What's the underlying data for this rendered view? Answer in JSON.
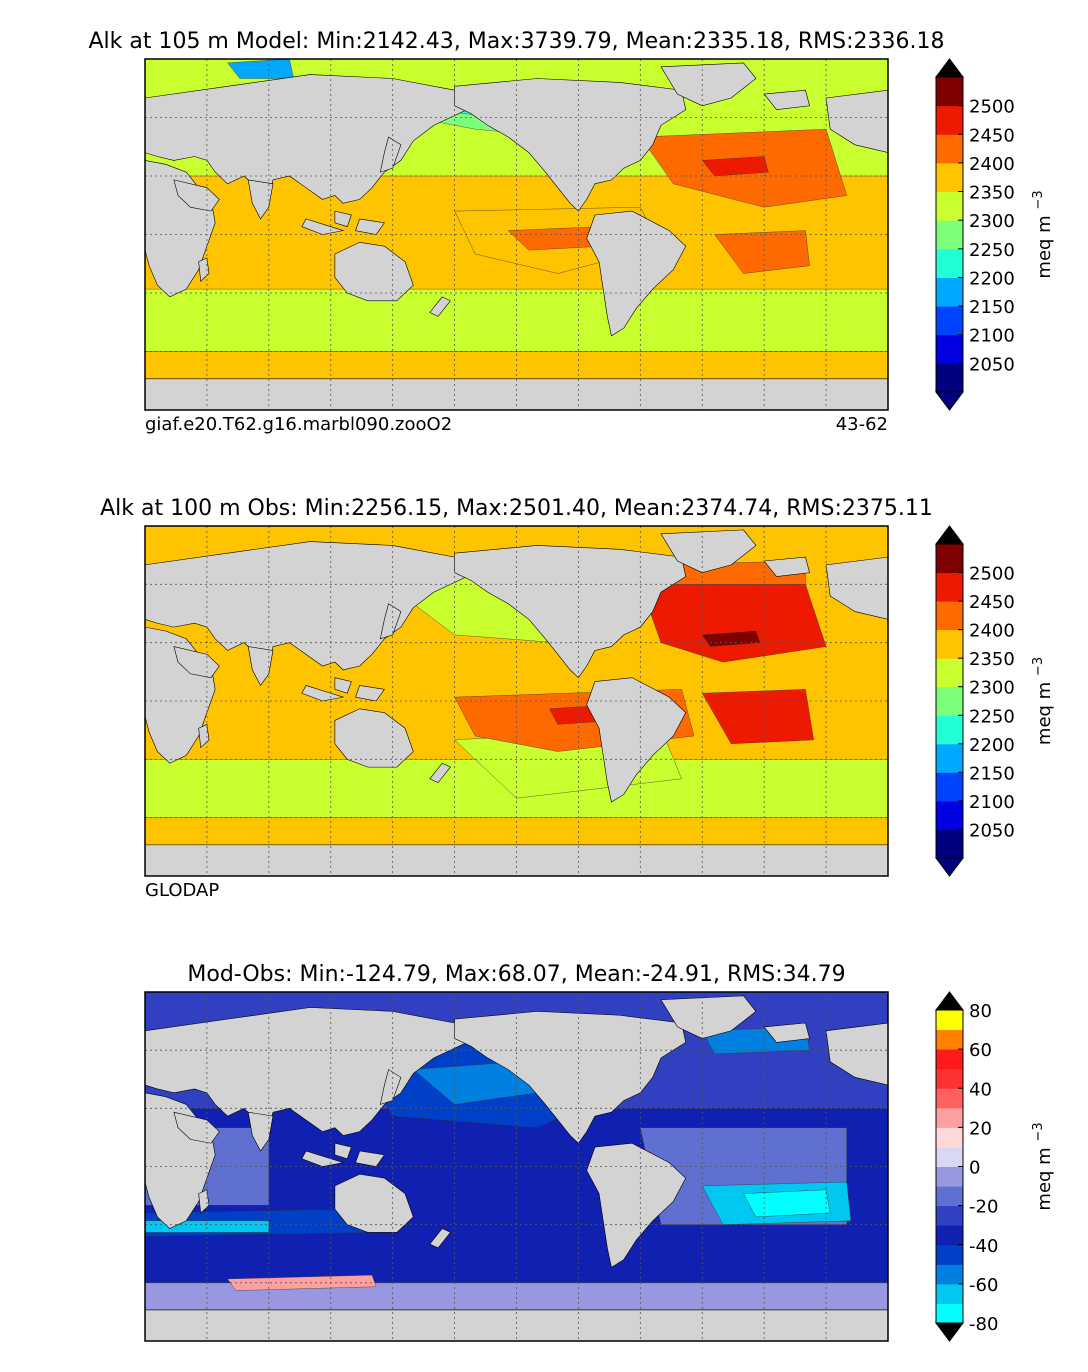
{
  "chart_data": [
    {
      "type": "heatmap",
      "title": "Alk at 105 m Model: Min:2142.43, Max:3739.79, Mean:2335.18, RMS:2336.18",
      "left_label": "giaf.e20.T62.g16.marbl090.zooO2",
      "right_label": "43-62",
      "colorbar": {
        "label": "meq m",
        "label_exponent": "−3",
        "ticks": [
          "2050",
          "2100",
          "2150",
          "2200",
          "2250",
          "2300",
          "2350",
          "2400",
          "2450",
          "2500"
        ],
        "levels": [
          2000,
          2050,
          2100,
          2150,
          2200,
          2250,
          2300,
          2350,
          2400,
          2450,
          2500,
          2550
        ],
        "colors": [
          "#000080",
          "#0000e0",
          "#0044ff",
          "#00a8ff",
          "#21ffd6",
          "#7cff7a",
          "#c9ff2e",
          "#ffc400",
          "#ff6a00",
          "#ee1a00",
          "#800000"
        ],
        "under_color": "#000080",
        "over_color": "#000000",
        "extend": "both"
      },
      "land_color": "#d3d3d3",
      "grid": true
    },
    {
      "type": "heatmap",
      "title": "Alk at 100 m Obs: Min:2256.15, Max:2501.40, Mean:2374.74, RMS:2375.11",
      "left_label": "GLODAP",
      "right_label": "",
      "colorbar": {
        "label": "meq m",
        "label_exponent": "−3",
        "ticks": [
          "2050",
          "2100",
          "2150",
          "2200",
          "2250",
          "2300",
          "2350",
          "2400",
          "2450",
          "2500"
        ],
        "levels": [
          2000,
          2050,
          2100,
          2150,
          2200,
          2250,
          2300,
          2350,
          2400,
          2450,
          2500,
          2550
        ],
        "colors": [
          "#000080",
          "#0000e0",
          "#0044ff",
          "#00a8ff",
          "#21ffd6",
          "#7cff7a",
          "#c9ff2e",
          "#ffc400",
          "#ff6a00",
          "#ee1a00",
          "#800000"
        ],
        "under_color": "#000080",
        "over_color": "#000000",
        "extend": "both"
      },
      "land_color": "#d3d3d3",
      "grid": true
    },
    {
      "type": "heatmap",
      "title": "Mod-Obs: Min:-124.79, Max:68.07, Mean:-24.91, RMS:34.79",
      "left_label": "",
      "right_label": "",
      "colorbar": {
        "label": "meq m",
        "label_exponent": "−3",
        "ticks": [
          "-80",
          "-60",
          "-40",
          "-20",
          "0",
          "20",
          "40",
          "60",
          "80"
        ],
        "levels": [
          -80,
          -70,
          -60,
          -50,
          -40,
          -30,
          -20,
          -10,
          0,
          10,
          20,
          30,
          40,
          50,
          60,
          70,
          80
        ],
        "colors": [
          "#00ffff",
          "#00c8f0",
          "#0080e0",
          "#0040c8",
          "#1020b0",
          "#3040c0",
          "#6070d0",
          "#9898e0",
          "#d8d8f4",
          "#ffd8d8",
          "#ffa0a0",
          "#ff6060",
          "#ff3030",
          "#ff1a1a",
          "#ff8000",
          "#ffff00"
        ],
        "under_color": "#000000",
        "over_color": "#000000",
        "extend": "both"
      },
      "land_color": "#d3d3d3",
      "grid": true
    }
  ]
}
